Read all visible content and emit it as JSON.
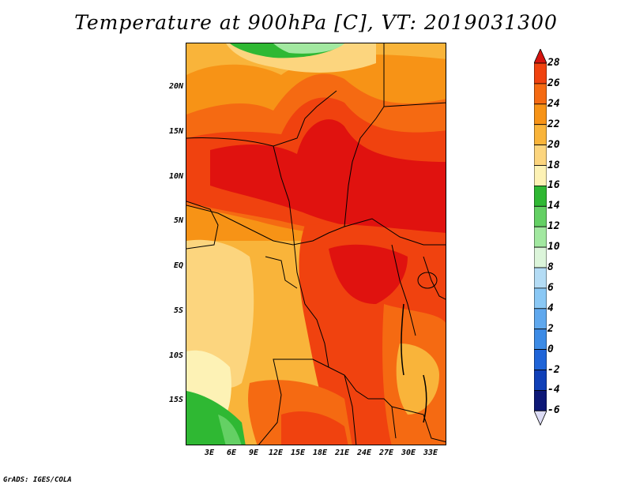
{
  "title": "Temperature at 900hPa [C], VT: 2019031300",
  "credit": "GrADS: IGES/COLA",
  "map": {
    "lat_labels": [
      "20N",
      "15N",
      "10N",
      "5N",
      "EQ",
      "5S",
      "10S",
      "15S"
    ],
    "lon_labels": [
      "3E",
      "6E",
      "9E",
      "12E",
      "15E",
      "18E",
      "21E",
      "24E",
      "27E",
      "30E",
      "33E"
    ],
    "lat_range": [
      -20,
      25
    ],
    "lon_range": [
      0,
      35
    ]
  },
  "colorbar": {
    "labels": [
      "28",
      "26",
      "24",
      "22",
      "20",
      "18",
      "16",
      "14",
      "12",
      "10",
      "8",
      "6",
      "4",
      "2",
      "0",
      "-2",
      "-4",
      "-6"
    ],
    "colors": [
      "#e0120f",
      "#f0420f",
      "#f56a12",
      "#f79316",
      "#f9b43a",
      "#fcd57e",
      "#fdf2b5",
      "#2fb833",
      "#64d064",
      "#a2e8a0",
      "#dcf5da",
      "#b4dcf5",
      "#8ac8f5",
      "#5fa8ee",
      "#3c8be6",
      "#1f64d8",
      "#1040b8",
      "#0d1877"
    ],
    "over_color": "#d5140f",
    "under_color": "#dcdcf5"
  },
  "legend_colors": {
    "c1": "#fdf2b5",
    "c2": "#fcd57e",
    "c3": "#f9b43a",
    "c4": "#f79316",
    "c5": "#f56a12",
    "c6": "#f0420f",
    "c7": "#e0120f",
    "g1": "#2fb833",
    "g2": "#64d064",
    "g3": "#a2e8a0"
  }
}
